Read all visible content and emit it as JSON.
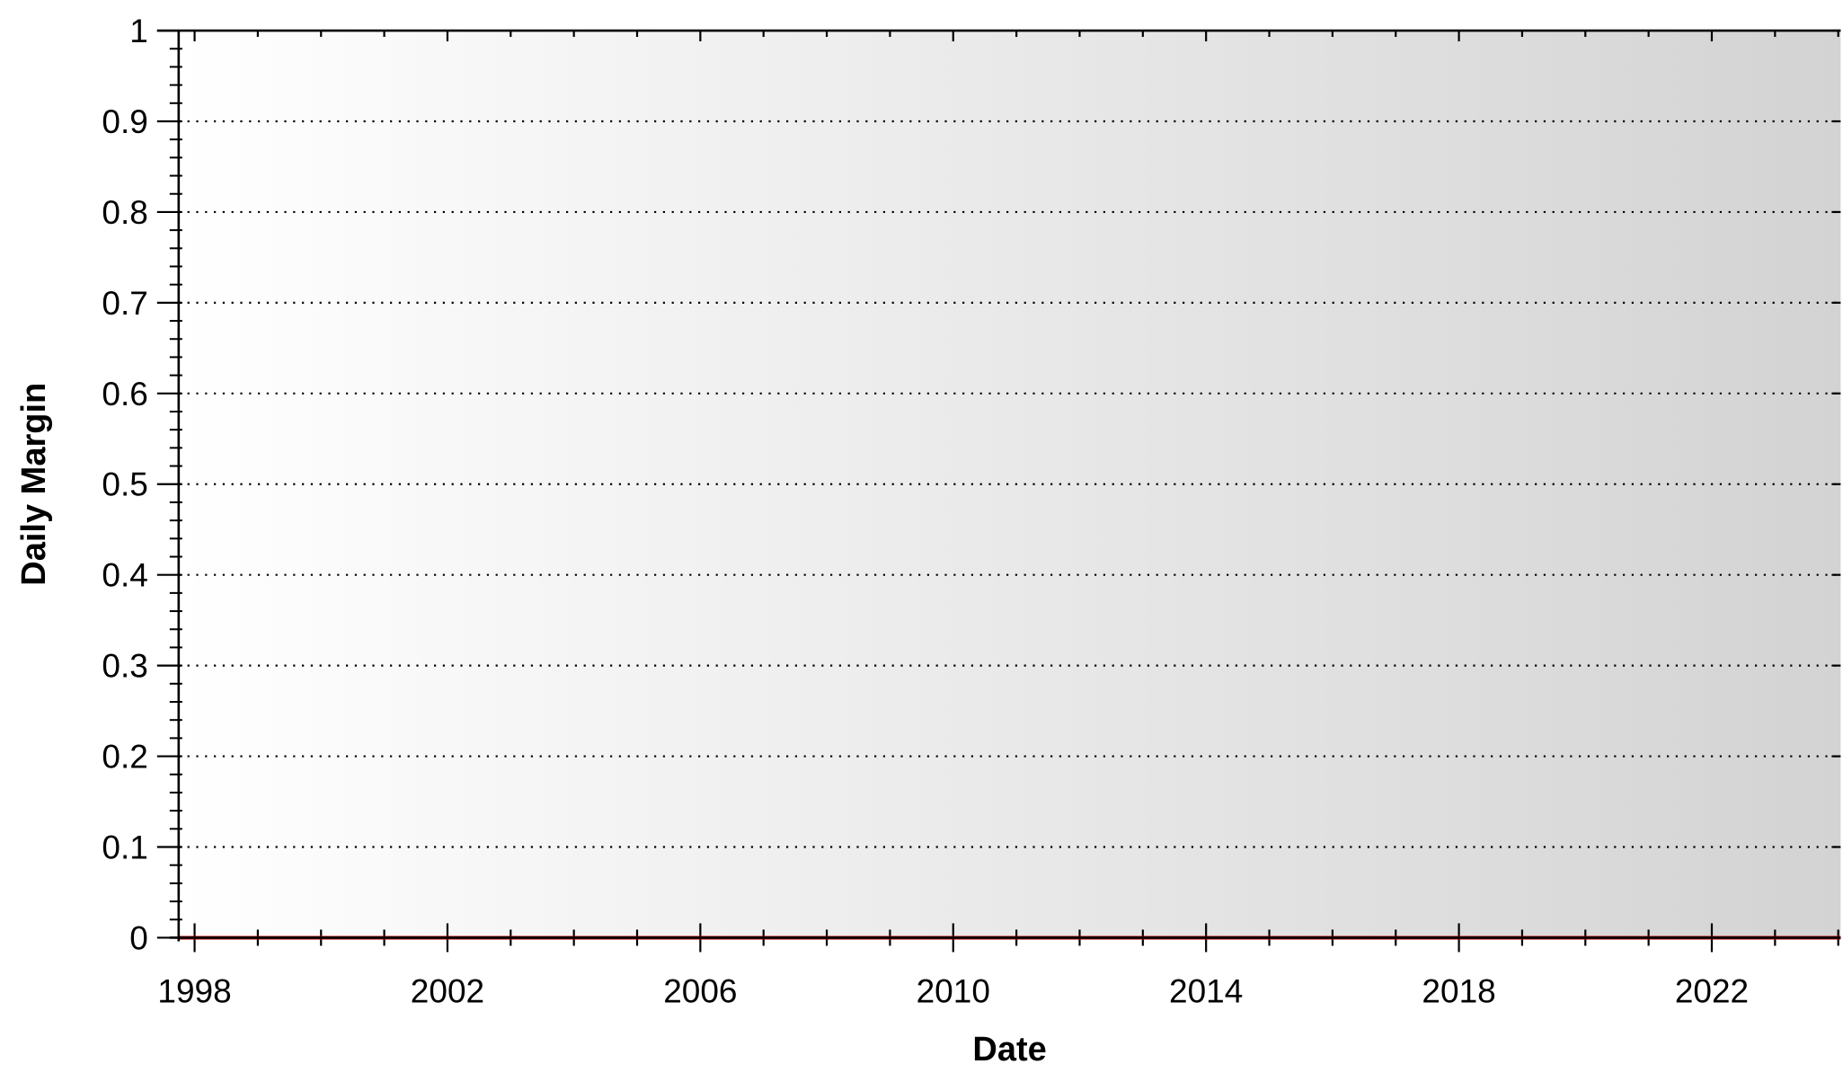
{
  "chart_data": {
    "type": "line",
    "title": "",
    "xlabel": "Date",
    "ylabel": "Daily Margin",
    "x_axis_type": "date",
    "xlim": [
      "1997-10-01",
      "2024-01-15"
    ],
    "ylim": [
      0,
      1
    ],
    "x_tick_labels": [
      "1998",
      "2002",
      "2006",
      "2010",
      "2014",
      "2018",
      "2022"
    ],
    "x_tick_values": [
      "1998-01-01",
      "2002-01-01",
      "2006-01-01",
      "2010-01-01",
      "2014-01-01",
      "2018-01-01",
      "2022-01-01"
    ],
    "y_tick_labels": [
      "0",
      "0.1",
      "0.2",
      "0.3",
      "0.4",
      "0.5",
      "0.6",
      "0.7",
      "0.8",
      "0.9",
      "1"
    ],
    "y_tick_values": [
      0,
      0.1,
      0.2,
      0.3,
      0.4,
      0.5,
      0.6,
      0.7,
      0.8,
      0.9,
      1
    ],
    "grid": "horizontal dotted",
    "legend": "none",
    "series": [
      {
        "color": "#c00000",
        "x": [
          "1997-10-01",
          "2024-01-15"
        ],
        "y": [
          0,
          0
        ]
      }
    ]
  },
  "colors": {
    "background_gradient_start": "#ffffff",
    "background_gradient_end": "#d3d3d3",
    "axis": "#000000",
    "grid": "#000000",
    "series_line": "#c00000"
  }
}
